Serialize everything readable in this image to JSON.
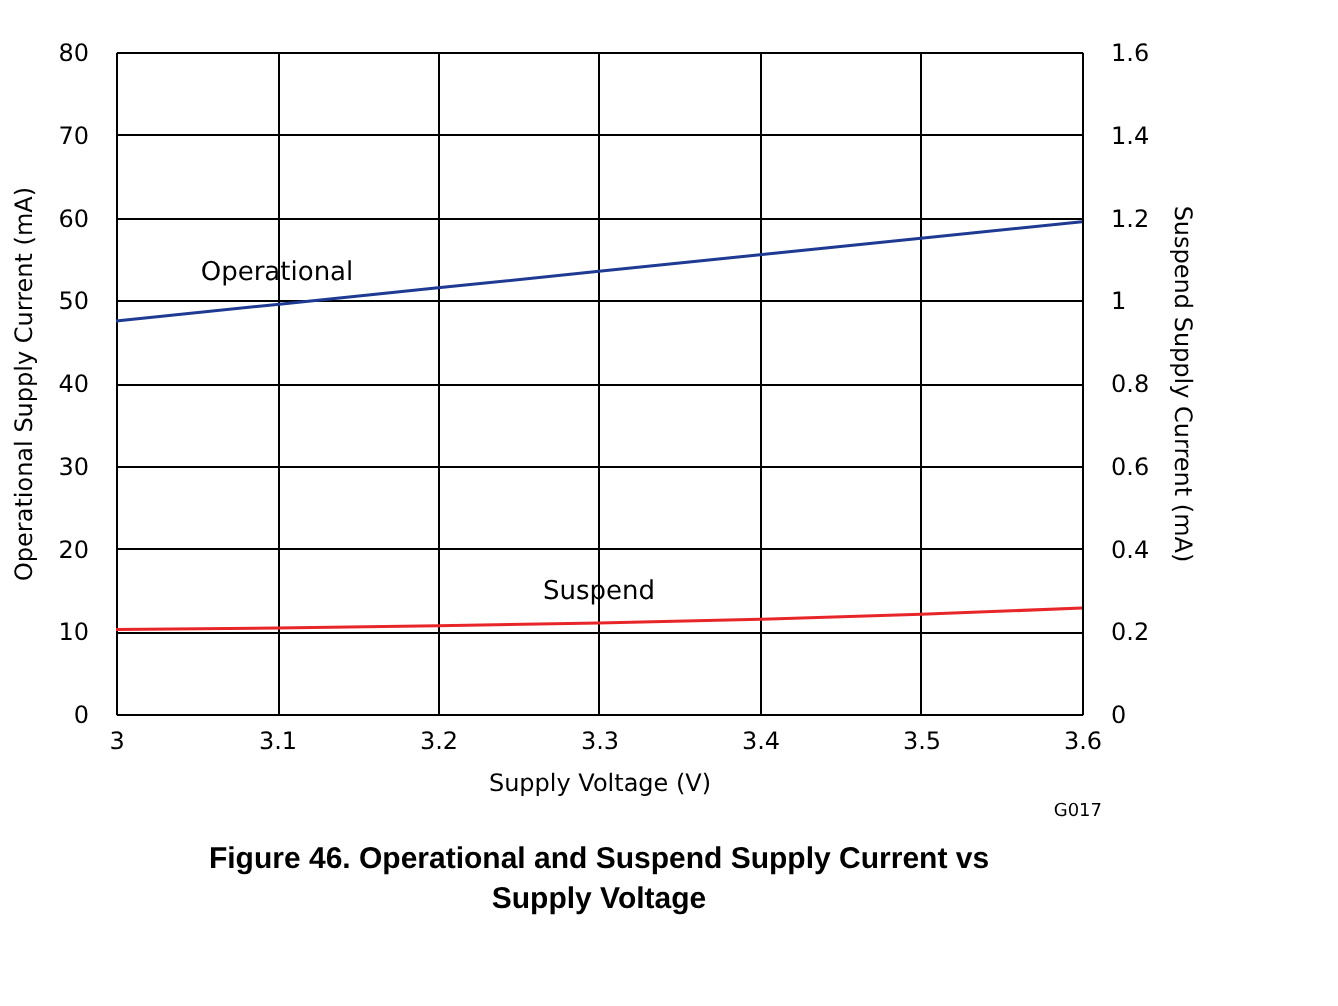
{
  "chart_data": {
    "type": "line",
    "title": "Figure 46. Operational and Suspend Supply Current vs Supply Voltage",
    "xlabel": "Supply Voltage (V)",
    "ylabel": "Operational Supply Current (mA)",
    "y2label": "Suspend Supply Current (mA)",
    "x": [
      3.0,
      3.1,
      3.2,
      3.3,
      3.4,
      3.5,
      3.6
    ],
    "series": [
      {
        "name": "Operational",
        "color": "#1f3a93",
        "values": [
          47.5,
          49.5,
          51.5,
          53.5,
          55.5,
          57.5,
          59.5
        ]
      },
      {
        "name": "Suspend",
        "color": "#e8262a",
        "axis": "y2",
        "values": [
          0.204,
          0.208,
          0.213,
          0.22,
          0.229,
          0.241,
          0.256
        ]
      }
    ],
    "xlim": [
      3.0,
      3.6
    ],
    "xticks": [
      3,
      3.1,
      3.2,
      3.3,
      3.4,
      3.5,
      3.6
    ],
    "ylim": [
      0,
      80
    ],
    "yticks": [
      0,
      10,
      20,
      30,
      40,
      50,
      60,
      70,
      80
    ],
    "y2lim": [
      0,
      1.6
    ],
    "y2ticks": [
      0,
      0.2,
      0.4,
      0.6,
      0.8,
      1,
      1.2,
      1.4,
      1.6
    ],
    "grid": true,
    "marker": "none",
    "line_style": "solid",
    "annotations": [
      "G017"
    ]
  }
}
